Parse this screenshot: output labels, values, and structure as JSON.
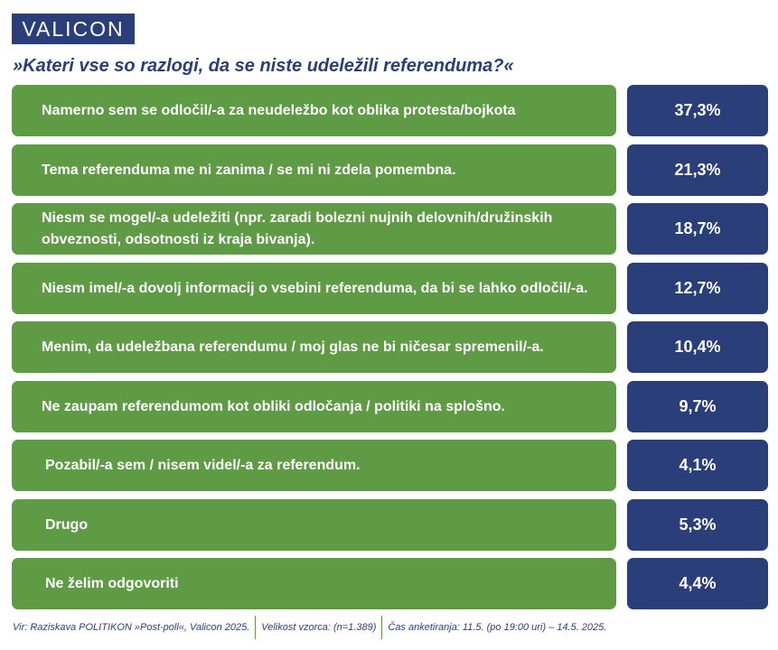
{
  "brand": {
    "logo_text": "VALICON"
  },
  "chart_data": {
    "type": "table",
    "title": "»Kateri vse so razlogi, da se niste udeležili referenduma?«",
    "rows": [
      {
        "label": "Namerno sem se odločil/-a za neudeležbo kot oblika protesta/bojkota",
        "value_label": "37,3%",
        "value": 37.3
      },
      {
        "label": "Tema referenduma me ni zanima / se mi ni zdela pomembna.",
        "value_label": "21,3%",
        "value": 21.3
      },
      {
        "label": "Niesm se mogel/-a udeležiti (npr. zaradi bolezni nujnih delovnih/družinskih obveznosti, odsotnosti iz kraja bivanja).",
        "value_label": "18,7%",
        "value": 18.7
      },
      {
        "label": "Niesm imel/-a dovolj informacij o vsebini referenduma, da bi se lahko odločil/-a.",
        "value_label": "12,7%",
        "value": 12.7
      },
      {
        "label": "Menim, da udeležbana referendumu / moj glas ne bi ničesar spremenil/-a.",
        "value_label": "10,4%",
        "value": 10.4
      },
      {
        "label": "Ne zaupam referendumom kot obliki odločanja / politiki na splošno.",
        "value_label": "9,7%",
        "value": 9.7
      },
      {
        "label": "Pozabil/-a sem / nisem videl/-a za referendum.",
        "value_label": "4,1%",
        "value": 4.1
      },
      {
        "label": "Drugo",
        "value_label": "5,3%",
        "value": 5.3
      },
      {
        "label": "Ne želim odgovoriti",
        "value_label": "4,4%",
        "value": 4.4
      }
    ]
  },
  "footer": {
    "source": "Vir: Raziskava POLITIKON »Post-poll«, Valicon 2025.",
    "sample": "Velikost vzorca: (n=1.389)",
    "period": "Čas anketiranja: 11.5. (po 19:00 uri) – 14.5. 2025."
  },
  "colors": {
    "label_bg": "#5f9a45",
    "value_bg": "#2a3f7a",
    "title": "#2a3f7a"
  }
}
